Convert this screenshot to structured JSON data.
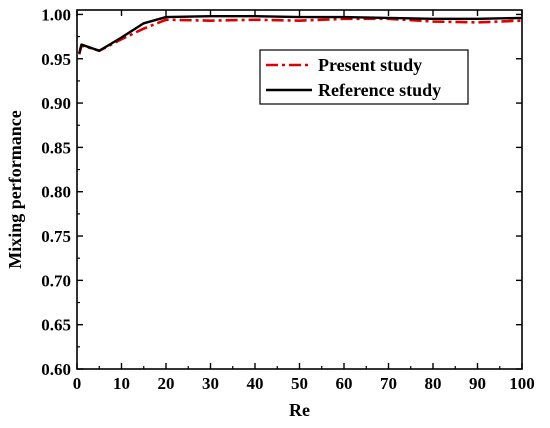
{
  "chart_data": {
    "type": "line",
    "title": "",
    "xlabel": "Re",
    "ylabel": "Mixing performance",
    "xlim": [
      0,
      100
    ],
    "ylim": [
      0.6,
      1.005
    ],
    "xticks": [
      0,
      10,
      20,
      30,
      40,
      50,
      60,
      70,
      80,
      90,
      100
    ],
    "yticks": [
      0.6,
      0.65,
      0.7,
      0.75,
      0.8,
      0.85,
      0.9,
      0.95,
      1.0
    ],
    "xtick_labels": [
      "0",
      "10",
      "20",
      "30",
      "40",
      "50",
      "60",
      "70",
      "80",
      "90",
      "100"
    ],
    "ytick_labels": [
      "0.60",
      "0.65",
      "0.70",
      "0.75",
      "0.80",
      "0.85",
      "0.90",
      "0.95",
      "1.00"
    ],
    "grid": false,
    "legend_position": "top-right",
    "series": [
      {
        "name": "Present study",
        "color": "#e00000",
        "style": "dash-dot",
        "x": [
          0.5,
          1,
          5,
          10,
          15,
          20,
          30,
          40,
          50,
          60,
          70,
          80,
          90,
          100
        ],
        "y": [
          0.955,
          0.965,
          0.959,
          0.972,
          0.984,
          0.994,
          0.993,
          0.994,
          0.993,
          0.995,
          0.995,
          0.992,
          0.991,
          0.993
        ]
      },
      {
        "name": "Reference study",
        "color": "#000000",
        "style": "solid",
        "x": [
          0.5,
          1,
          5,
          10,
          15,
          20,
          30,
          40,
          50,
          60,
          70,
          80,
          90,
          100
        ],
        "y": [
          0.956,
          0.966,
          0.959,
          0.974,
          0.99,
          0.997,
          0.998,
          0.998,
          0.997,
          0.997,
          0.996,
          0.995,
          0.995,
          0.996
        ]
      }
    ]
  }
}
